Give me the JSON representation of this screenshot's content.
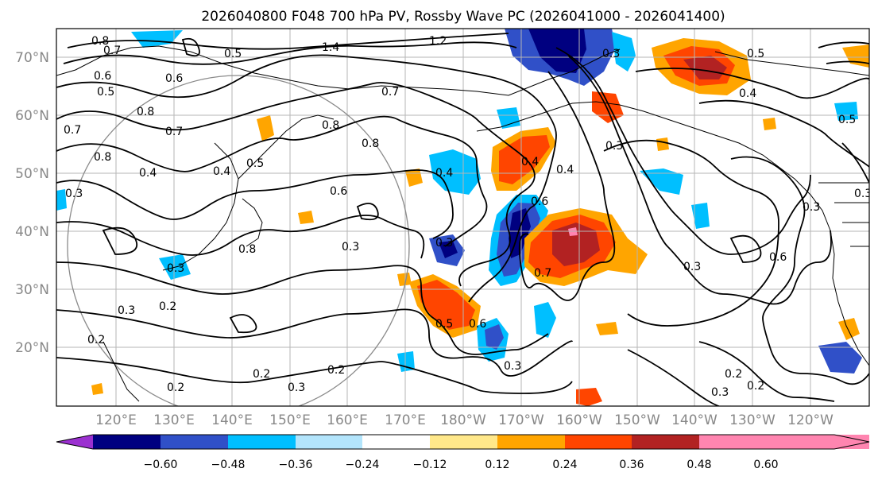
{
  "title": "2026040800 F048 700 hPa PV, Rossby Wave PC (2026041000 - 2026041400)",
  "latitudes": [
    "70°N",
    "60°N",
    "50°N",
    "40°N",
    "30°N",
    "20°N"
  ],
  "longitudes": [
    "120°E",
    "130°E",
    "140°E",
    "150°E",
    "160°E",
    "170°E",
    "180°W",
    "170°W",
    "160°W",
    "150°W",
    "140°W",
    "130°W",
    "120°W"
  ],
  "colorbar": {
    "labels": [
      "−0.60",
      "−0.48",
      "−0.36",
      "−0.24",
      "−0.12",
      "0.12",
      "0.24",
      "0.36",
      "0.48",
      "0.60"
    ],
    "colors": [
      "#9b30d0",
      "#000080",
      "#3050c8",
      "#00bfff",
      "#b3e5fc",
      "#ffffff",
      "#ffe88a",
      "#ffa500",
      "#ff4500",
      "#b22222",
      "#ff85b0"
    ]
  },
  "contour_labels": [
    "0.8",
    "0.7",
    "1.4",
    "1.2",
    "0.5",
    "0.6",
    "0.3",
    "0.5",
    "0.6",
    "0.7",
    "0.8",
    "0.7",
    "0.4",
    "0.8",
    "0.5",
    "0.4",
    "0.8",
    "0.8",
    "0.6",
    "0.4",
    "0.7",
    "0.4",
    "0.8",
    "0.6",
    "0.5",
    "0.3",
    "0.7",
    "0.3",
    "0.6",
    "0.2",
    "0.3",
    "0.3",
    "0.2",
    "0.3",
    "0.2",
    "0.3",
    "0.2",
    "0.2",
    "0.3",
    "0.5",
    "0.3",
    "0.4",
    "0.6",
    "0.4",
    "0.5",
    "0.3",
    "0.3",
    "0.2",
    "0.3",
    "0.2",
    "0.3"
  ]
}
